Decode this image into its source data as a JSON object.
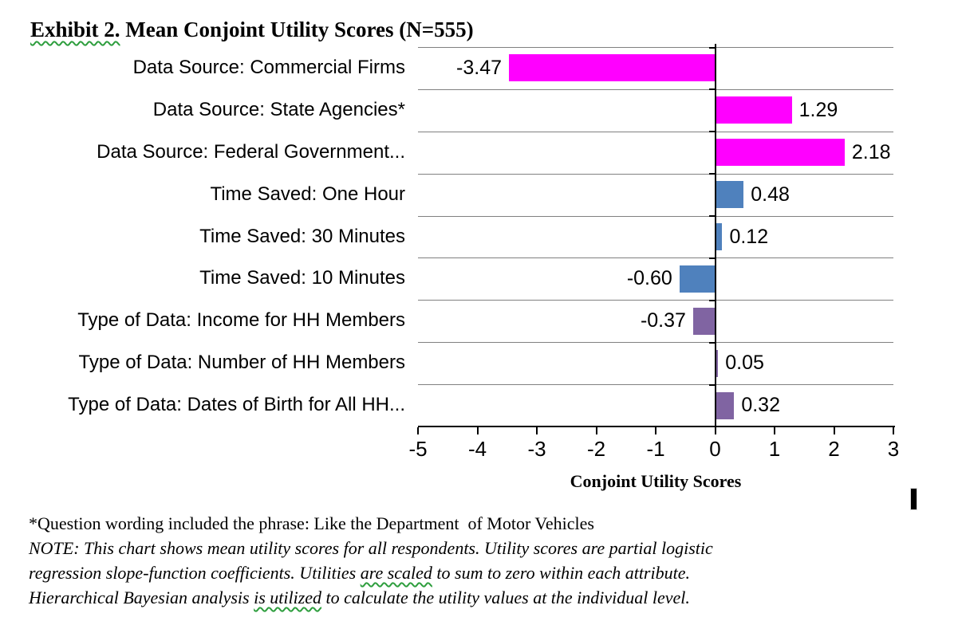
{
  "page": {
    "background": "#FFFFFF"
  },
  "title": {
    "full": "Exhibit 2. Mean Conjoint Utility Scores (N=555)",
    "segments": [
      {
        "text": "Exhibit 2.",
        "wavy": true
      },
      {
        "text": " Mean Conjoint Utility Scores (N=555)",
        "wavy": false
      }
    ]
  },
  "chart_data": {
    "type": "bar",
    "orientation": "horizontal",
    "title": "Exhibit 2. Mean Conjoint Utility Scores (N=555)",
    "categories": [
      "Data Source: Commercial Firms",
      "Data Source: State Agencies*",
      "Data Source: Federal Government...",
      "Time Saved: One Hour",
      "Time Saved: 30 Minutes",
      "Time Saved: 10 Minutes",
      "Type of Data: Income for HH Members",
      "Type of Data: Number of HH Members",
      "Type of Data: Dates of Birth for All HH..."
    ],
    "values": [
      -3.47,
      1.29,
      2.18,
      0.48,
      0.12,
      -0.6,
      -0.37,
      0.05,
      0.32
    ],
    "value_labels": [
      "-3.47",
      "1.29",
      "2.18",
      "0.48",
      "0.12",
      "-0.60",
      "-0.37",
      "0.05",
      "0.32"
    ],
    "bar_colors": [
      "#FF00FF",
      "#FF00FF",
      "#FF00FF",
      "#4F81BD",
      "#4F81BD",
      "#4F81BD",
      "#8064A2",
      "#8064A2",
      "#8064A2"
    ],
    "color_groups": [
      {
        "name": "Data Source",
        "color": "#FF00FF"
      },
      {
        "name": "Time Saved",
        "color": "#4F81BD"
      },
      {
        "name": "Type of Data",
        "color": "#8064A2"
      }
    ],
    "xlabel": "Conjoint Utility Scores",
    "xlim": [
      -5,
      3
    ],
    "x_ticks": [
      "-5",
      "-4",
      "-3",
      "-2",
      "-1",
      "0",
      "1",
      "2",
      "3"
    ],
    "grid": "horizontal-category-separators",
    "gridline_color": "#808080",
    "axis_color": "#000000",
    "legend": "none"
  },
  "footnotes": {
    "line1": "*Question wording included the phrase: Like the Department  of Motor Vehicles",
    "note_lines": [
      [
        {
          "text": "NOTE: This chart shows mean utility scores for all respondents. Utility scores are partial logistic",
          "wavy": false
        }
      ],
      [
        {
          "text": "regression slope-function coefficients. Utilities ",
          "wavy": false
        },
        {
          "text": "are scaled",
          "wavy": true
        },
        {
          "text": " to sum to zero within each attribute.",
          "wavy": false
        }
      ],
      [
        {
          "text": "Hierarchical Bayesian analysis ",
          "wavy": false
        },
        {
          "text": "is utilized",
          "wavy": true
        },
        {
          "text": " to calculate the utility values at the individual level.",
          "wavy": false
        }
      ]
    ]
  }
}
